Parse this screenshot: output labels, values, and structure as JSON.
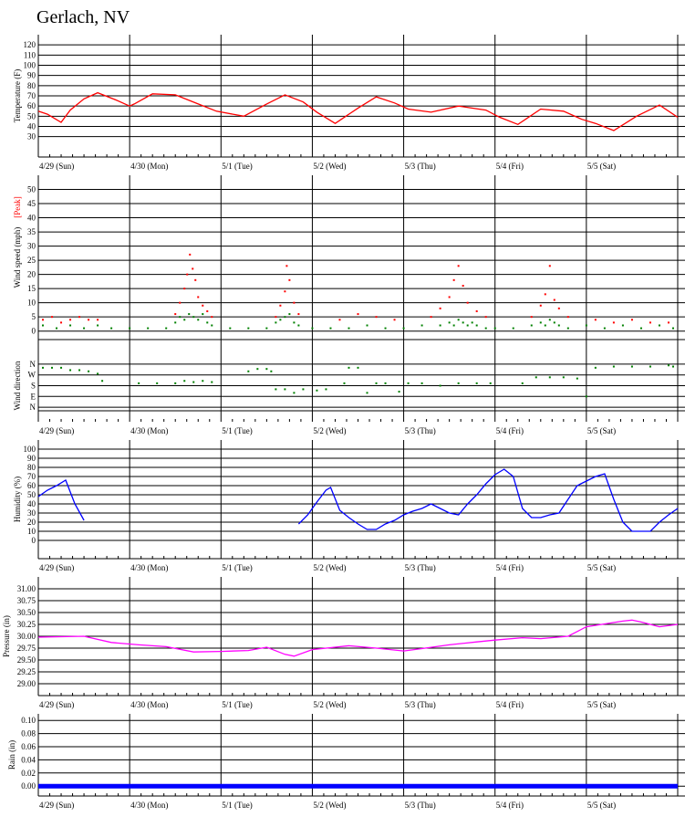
{
  "title": "Gerlach, NV",
  "days": [
    "4/29 (Sun)",
    "4/30 (Mon)",
    "5/1 (Tue)",
    "5/2 (Wed)",
    "5/3 (Thu)",
    "5/4 (Fri)",
    "5/5 (Sat)"
  ],
  "colors": {
    "temperature": "#ff0000",
    "wind_peak": "#ff0000",
    "wind_avg": "#008000",
    "wind_dir": "#008000",
    "humidity": "#0000ff",
    "pressure": "#ff00ff",
    "rain": "#0000ff",
    "grid": "#000000"
  },
  "chart_data": [
    {
      "type": "line",
      "ylabel": "Temperature (F)",
      "y_ticks": [
        "120",
        "110",
        "100",
        "90",
        "80",
        "70",
        "60",
        "50",
        "40",
        "30"
      ],
      "ylim": [
        10,
        130
      ],
      "xlim_days": [
        0,
        7
      ],
      "series": [
        {
          "x": [
            0,
            0.1,
            0.25,
            0.35,
            0.5,
            0.65,
            0.85,
            1.0,
            1.05,
            1.25,
            1.5,
            1.75,
            1.95,
            2.25,
            2.5,
            2.7,
            2.9,
            3.05,
            3.25,
            3.5,
            3.7,
            3.9,
            4.05,
            4.3,
            4.6,
            4.9,
            5.05,
            5.25,
            5.5,
            5.75,
            5.95,
            6.1,
            6.3,
            6.55,
            6.8,
            7.0
          ],
          "y": [
            55,
            52,
            44,
            56,
            67,
            73,
            66,
            60,
            62,
            72,
            71,
            62,
            55,
            50,
            62,
            71,
            64,
            54,
            43,
            58,
            69,
            63,
            57,
            54,
            60,
            56,
            49,
            42,
            57,
            55,
            47,
            43,
            36,
            50,
            61,
            49
          ]
        }
      ]
    },
    {
      "type": "scatter",
      "ylabel": "Wind speed (mph)",
      "legend": "[Peak]",
      "y_ticks": [
        "50",
        "45",
        "40",
        "35",
        "30",
        "25",
        "20",
        "15",
        "10",
        "5",
        "0"
      ],
      "ylim": [
        -3,
        55
      ],
      "xlim_days": [
        0,
        7
      ],
      "series": [
        {
          "x": [
            0.05,
            0.15,
            0.25,
            0.35,
            0.45,
            0.55,
            0.65,
            1.5,
            1.55,
            1.6,
            1.63,
            1.66,
            1.69,
            1.72,
            1.75,
            1.8,
            1.85,
            1.9,
            2.6,
            2.65,
            2.7,
            2.72,
            2.75,
            2.8,
            2.85,
            3.3,
            3.5,
            3.7,
            3.9,
            4.3,
            4.4,
            4.5,
            4.55,
            4.6,
            4.65,
            4.7,
            4.8,
            4.9,
            5.4,
            5.5,
            5.55,
            5.6,
            5.65,
            5.7,
            5.8,
            6.1,
            6.3,
            6.5,
            6.7,
            6.9
          ],
          "y": [
            4,
            5,
            3,
            4,
            5,
            4,
            4,
            6,
            10,
            15,
            20,
            27,
            22,
            18,
            12,
            9,
            7,
            5,
            5,
            9,
            14,
            23,
            18,
            10,
            6,
            4,
            6,
            5,
            4,
            5,
            8,
            12,
            18,
            23,
            16,
            10,
            7,
            5,
            5,
            9,
            13,
            23,
            11,
            8,
            5,
            4,
            3,
            4,
            3,
            3
          ]
        },
        {
          "x": [
            0.05,
            0.2,
            0.35,
            0.5,
            0.65,
            0.8,
            1.0,
            1.2,
            1.4,
            1.5,
            1.55,
            1.6,
            1.65,
            1.7,
            1.75,
            1.8,
            1.85,
            1.9,
            2.1,
            2.3,
            2.5,
            2.6,
            2.65,
            2.7,
            2.75,
            2.8,
            2.85,
            3.0,
            3.2,
            3.4,
            3.6,
            3.8,
            4.0,
            4.2,
            4.4,
            4.5,
            4.55,
            4.6,
            4.65,
            4.7,
            4.75,
            4.8,
            4.9,
            5.0,
            5.2,
            5.4,
            5.5,
            5.55,
            5.6,
            5.65,
            5.7,
            5.8,
            6.0,
            6.2,
            6.4,
            6.6,
            6.8,
            6.95
          ],
          "y": [
            2,
            1,
            2,
            1,
            2,
            1,
            1,
            1,
            1,
            3,
            5,
            4,
            6,
            5,
            4,
            6,
            3,
            2,
            1,
            1,
            1,
            3,
            4,
            5,
            6,
            3,
            2,
            1,
            1,
            1,
            2,
            1,
            1,
            2,
            2,
            3,
            2,
            4,
            3,
            2,
            3,
            2,
            1,
            1,
            1,
            2,
            3,
            2,
            4,
            3,
            2,
            1,
            2,
            1,
            2,
            1,
            2,
            1
          ]
        }
      ]
    },
    {
      "type": "scatter",
      "ylabel": "Wind direction",
      "y_ticks": [
        "N",
        "E",
        "S",
        "W",
        "N"
      ],
      "ylim": [
        -30,
        390
      ],
      "xlim_days": [
        0,
        7
      ],
      "series": [
        {
          "x": [
            0.05,
            0.15,
            0.25,
            0.35,
            0.45,
            0.55,
            0.65,
            0.7,
            1.1,
            1.3,
            1.5,
            1.6,
            1.7,
            1.8,
            1.9,
            2.3,
            2.4,
            2.5,
            2.55,
            2.6,
            2.7,
            2.8,
            2.9,
            3.05,
            3.15,
            3.35,
            3.4,
            3.5,
            3.6,
            3.7,
            3.8,
            3.95,
            4.05,
            4.2,
            4.4,
            4.6,
            4.8,
            4.95,
            5.3,
            5.45,
            5.6,
            5.75,
            5.9,
            6.0,
            6.1,
            6.3,
            6.5,
            6.7,
            6.9,
            6.95
          ],
          "y": [
            330,
            330,
            330,
            310,
            310,
            300,
            280,
            220,
            200,
            200,
            200,
            220,
            210,
            220,
            210,
            300,
            320,
            320,
            300,
            150,
            150,
            120,
            150,
            140,
            150,
            200,
            330,
            330,
            120,
            200,
            200,
            130,
            200,
            200,
            180,
            200,
            200,
            200,
            200,
            250,
            250,
            250,
            240,
            90,
            330,
            340,
            340,
            340,
            350,
            340
          ]
        }
      ]
    },
    {
      "type": "line",
      "ylabel": "Humidity (%)",
      "y_ticks": [
        "100",
        "90",
        "80",
        "70",
        "60",
        "50",
        "40",
        "30",
        "20",
        "10",
        "0"
      ],
      "ylim": [
        -20,
        110
      ],
      "xlim_days": [
        0,
        7
      ],
      "series": [
        {
          "x": [
            0,
            0.1,
            0.2,
            0.3,
            0.4,
            0.5
          ],
          "y": [
            48,
            55,
            60,
            66,
            40,
            22
          ]
        },
        {
          "x": [
            2.85,
            2.95,
            3.05,
            3.15,
            3.2,
            3.3,
            3.4,
            3.5,
            3.6,
            3.7,
            3.8,
            3.9,
            4.0,
            4.1,
            4.2,
            4.3,
            4.4,
            4.5,
            4.6,
            4.7,
            4.8,
            4.9,
            5.0,
            5.1,
            5.2,
            5.3,
            5.4,
            5.5,
            5.6,
            5.7,
            5.8,
            5.9,
            6.0,
            6.1,
            6.2,
            6.3,
            6.4,
            6.5,
            6.6,
            6.7,
            6.8,
            6.9,
            7.0
          ],
          "y": [
            18,
            28,
            42,
            55,
            58,
            33,
            25,
            18,
            12,
            12,
            18,
            22,
            28,
            32,
            35,
            40,
            35,
            30,
            28,
            40,
            50,
            62,
            72,
            78,
            70,
            35,
            25,
            25,
            28,
            30,
            45,
            60,
            65,
            70,
            73,
            45,
            20,
            10,
            10,
            10,
            20,
            28,
            35
          ]
        }
      ]
    },
    {
      "type": "line",
      "ylabel": "Pressure (in)",
      "y_ticks": [
        "31.00",
        "30.75",
        "30.50",
        "30.25",
        "30.00",
        "29.75",
        "29.50",
        "29.25",
        "29.00"
      ],
      "ylim": [
        28.75,
        31.25
      ],
      "xlim_days": [
        0,
        7
      ],
      "series": [
        {
          "x": [
            0,
            0.25,
            0.5,
            0.8,
            1.1,
            1.4,
            1.7,
            2.0,
            2.3,
            2.5,
            2.7,
            2.8,
            3.0,
            3.2,
            3.4,
            3.7,
            4.0,
            4.2,
            4.5,
            4.8,
            5.0,
            5.3,
            5.5,
            5.8,
            6.0,
            6.2,
            6.4,
            6.5,
            6.6,
            6.8,
            7.0
          ],
          "y": [
            29.98,
            29.99,
            30.0,
            29.87,
            29.82,
            29.78,
            29.67,
            29.68,
            29.7,
            29.77,
            29.62,
            29.58,
            29.72,
            29.76,
            29.8,
            29.75,
            29.69,
            29.74,
            29.82,
            29.88,
            29.92,
            29.97,
            29.95,
            30.0,
            30.2,
            30.26,
            30.32,
            30.34,
            30.3,
            30.2,
            30.25
          ]
        }
      ]
    },
    {
      "type": "line",
      "ylabel": "Rain (in)",
      "y_ticks": [
        "0.10",
        "0.08",
        "0.06",
        "0.04",
        "0.02",
        "0.00"
      ],
      "ylim": [
        -0.015,
        0.11
      ],
      "xlim_days": [
        0,
        7
      ],
      "series": [
        {
          "x": [
            0,
            7
          ],
          "y": [
            0.0,
            0.0
          ]
        }
      ]
    }
  ]
}
